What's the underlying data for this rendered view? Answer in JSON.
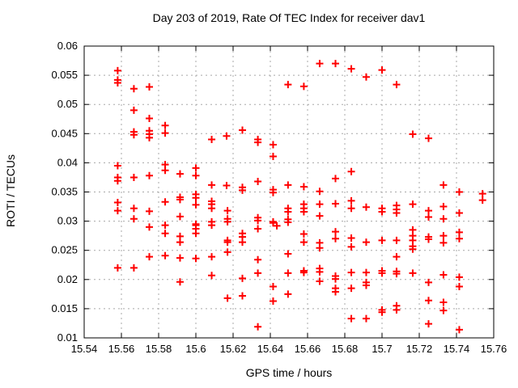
{
  "window": {
    "background": "#ffffff"
  },
  "chart_data": {
    "type": "scatter",
    "title": "Day 203 of 2019, Rate Of TEC Index for receiver dav1",
    "xlabel": "GPS time / hours",
    "ylabel": "ROTI / TECUs",
    "xlim": [
      15.54,
      15.76
    ],
    "ylim": [
      0.01,
      0.06
    ],
    "x_ticks": {
      "values": [
        15.54,
        15.56,
        15.58,
        15.6,
        15.62,
        15.64,
        15.66,
        15.68,
        15.7,
        15.72,
        15.74,
        15.76
      ],
      "labels": [
        "15.54",
        "15.56",
        "15.58",
        "15.6",
        "15.62",
        "15.64",
        "15.66",
        "15.68",
        "15.7",
        "15.72",
        "15.74",
        "15.76"
      ]
    },
    "y_ticks": {
      "values": [
        0.01,
        0.015,
        0.02,
        0.025,
        0.03,
        0.035,
        0.04,
        0.045,
        0.05,
        0.055,
        0.06
      ],
      "labels": [
        "0.01",
        "0.015",
        "0.02",
        "0.025",
        "0.03",
        "0.035",
        "0.04",
        "0.045",
        "0.05",
        "0.055",
        "0.06"
      ]
    },
    "grid": true,
    "grid_color": "#a8a8a8",
    "border_color": "#000000",
    "legend": "none",
    "marker": {
      "shape": "plus",
      "color": "#ff0000",
      "size": 9,
      "stroke_width": 2
    },
    "series": [
      {
        "name": "ROTI",
        "points": [
          [
            15.558,
            0.0558
          ],
          [
            15.558,
            0.0542
          ],
          [
            15.558,
            0.0537
          ],
          [
            15.5667,
            0.0527
          ],
          [
            15.575,
            0.053
          ],
          [
            15.5667,
            0.049
          ],
          [
            15.575,
            0.0476
          ],
          [
            15.5835,
            0.0464
          ],
          [
            15.5835,
            0.0451
          ],
          [
            15.5667,
            0.0453
          ],
          [
            15.5667,
            0.0448
          ],
          [
            15.575,
            0.0455
          ],
          [
            15.575,
            0.0449
          ],
          [
            15.575,
            0.0443
          ],
          [
            15.558,
            0.0395
          ],
          [
            15.5835,
            0.0397
          ],
          [
            15.5835,
            0.0387
          ],
          [
            15.5915,
            0.0381
          ],
          [
            15.558,
            0.0375
          ],
          [
            15.558,
            0.0369
          ],
          [
            15.5667,
            0.0375
          ],
          [
            15.575,
            0.0378
          ],
          [
            15.558,
            0.0332
          ],
          [
            15.558,
            0.0318
          ],
          [
            15.5667,
            0.0322
          ],
          [
            15.5667,
            0.0304
          ],
          [
            15.575,
            0.0317
          ],
          [
            15.575,
            0.029
          ],
          [
            15.5835,
            0.0333
          ],
          [
            15.5915,
            0.0341
          ],
          [
            15.5915,
            0.0337
          ],
          [
            15.5835,
            0.0293
          ],
          [
            15.5835,
            0.0279
          ],
          [
            15.5915,
            0.0308
          ],
          [
            15.5915,
            0.0274
          ],
          [
            15.5915,
            0.0264
          ],
          [
            15.575,
            0.0239
          ],
          [
            15.5835,
            0.0241
          ],
          [
            15.5915,
            0.0237
          ],
          [
            15.558,
            0.022
          ],
          [
            15.5667,
            0.022
          ],
          [
            15.5915,
            0.0196
          ],
          [
            15.6495,
            0.0534
          ],
          [
            15.625,
            0.0456
          ],
          [
            15.6165,
            0.0446
          ],
          [
            15.6085,
            0.044
          ],
          [
            15.6333,
            0.044
          ],
          [
            15.6333,
            0.0435
          ],
          [
            15.6415,
            0.0431
          ],
          [
            15.6415,
            0.0411
          ],
          [
            15.6,
            0.0391
          ],
          [
            15.6,
            0.0378
          ],
          [
            15.6085,
            0.0362
          ],
          [
            15.6165,
            0.0361
          ],
          [
            15.625,
            0.0358
          ],
          [
            15.625,
            0.0353
          ],
          [
            15.6333,
            0.0368
          ],
          [
            15.6415,
            0.0354
          ],
          [
            15.6415,
            0.0349
          ],
          [
            15.6495,
            0.0362
          ],
          [
            15.6,
            0.0346
          ],
          [
            15.6,
            0.034
          ],
          [
            15.6,
            0.0328
          ],
          [
            15.6085,
            0.0334
          ],
          [
            15.6085,
            0.0329
          ],
          [
            15.6085,
            0.0322
          ],
          [
            15.617,
            0.0318
          ],
          [
            15.617,
            0.0304
          ],
          [
            15.617,
            0.0299
          ],
          [
            15.6085,
            0.0299
          ],
          [
            15.6085,
            0.0293
          ],
          [
            15.6,
            0.0295
          ],
          [
            15.6,
            0.0293
          ],
          [
            15.6,
            0.0287
          ],
          [
            15.6,
            0.0279
          ],
          [
            15.6333,
            0.0306
          ],
          [
            15.6333,
            0.0301
          ],
          [
            15.6333,
            0.0287
          ],
          [
            15.6415,
            0.0299
          ],
          [
            15.6415,
            0.0297
          ],
          [
            15.6435,
            0.0292
          ],
          [
            15.6495,
            0.0322
          ],
          [
            15.6495,
            0.0316
          ],
          [
            15.6495,
            0.0303
          ],
          [
            15.6495,
            0.0298
          ],
          [
            15.625,
            0.0279
          ],
          [
            15.625,
            0.0273
          ],
          [
            15.625,
            0.0264
          ],
          [
            15.617,
            0.0267
          ],
          [
            15.617,
            0.0264
          ],
          [
            15.617,
            0.0247
          ],
          [
            15.6,
            0.0236
          ],
          [
            15.6085,
            0.0239
          ],
          [
            15.6333,
            0.0234
          ],
          [
            15.6085,
            0.0207
          ],
          [
            15.6333,
            0.0211
          ],
          [
            15.625,
            0.0202
          ],
          [
            15.6495,
            0.0244
          ],
          [
            15.6495,
            0.0211
          ],
          [
            15.6415,
            0.0188
          ],
          [
            15.6495,
            0.0175
          ],
          [
            15.6415,
            0.0163
          ],
          [
            15.617,
            0.0168
          ],
          [
            15.625,
            0.0172
          ],
          [
            15.6333,
            0.0119
          ],
          [
            15.6665,
            0.057
          ],
          [
            15.675,
            0.057
          ],
          [
            15.6835,
            0.0561
          ],
          [
            15.7,
            0.0559
          ],
          [
            15.6915,
            0.0547
          ],
          [
            15.658,
            0.0531
          ],
          [
            15.6835,
            0.0385
          ],
          [
            15.675,
            0.0373
          ],
          [
            15.658,
            0.0359
          ],
          [
            15.6665,
            0.0351
          ],
          [
            15.658,
            0.0329
          ],
          [
            15.658,
            0.0322
          ],
          [
            15.658,
            0.0316
          ],
          [
            15.6665,
            0.0329
          ],
          [
            15.6665,
            0.0309
          ],
          [
            15.675,
            0.033
          ],
          [
            15.6835,
            0.0335
          ],
          [
            15.6835,
            0.0322
          ],
          [
            15.6915,
            0.0324
          ],
          [
            15.7,
            0.0322
          ],
          [
            15.7,
            0.0316
          ],
          [
            15.658,
            0.0278
          ],
          [
            15.658,
            0.0264
          ],
          [
            15.6665,
            0.0263
          ],
          [
            15.6665,
            0.0254
          ],
          [
            15.675,
            0.0282
          ],
          [
            15.675,
            0.027
          ],
          [
            15.6835,
            0.0271
          ],
          [
            15.6835,
            0.0256
          ],
          [
            15.6915,
            0.0264
          ],
          [
            15.7,
            0.0267
          ],
          [
            15.658,
            0.0215
          ],
          [
            15.658,
            0.0212
          ],
          [
            15.6665,
            0.0219
          ],
          [
            15.6665,
            0.0213
          ],
          [
            15.6665,
            0.0197
          ],
          [
            15.675,
            0.0206
          ],
          [
            15.675,
            0.0201
          ],
          [
            15.675,
            0.0185
          ],
          [
            15.675,
            0.0179
          ],
          [
            15.6835,
            0.0212
          ],
          [
            15.6835,
            0.0185
          ],
          [
            15.6915,
            0.0212
          ],
          [
            15.6915,
            0.0195
          ],
          [
            15.6915,
            0.019
          ],
          [
            15.7,
            0.0215
          ],
          [
            15.7,
            0.0211
          ],
          [
            15.7,
            0.0148
          ],
          [
            15.7,
            0.0144
          ],
          [
            15.6835,
            0.0133
          ],
          [
            15.6915,
            0.0133
          ],
          [
            15.7078,
            0.0534
          ],
          [
            15.7165,
            0.0449
          ],
          [
            15.725,
            0.0442
          ],
          [
            15.733,
            0.0362
          ],
          [
            15.7415,
            0.035
          ],
          [
            15.7078,
            0.0327
          ],
          [
            15.7078,
            0.032
          ],
          [
            15.7078,
            0.0314
          ],
          [
            15.7165,
            0.0329
          ],
          [
            15.725,
            0.0318
          ],
          [
            15.725,
            0.0307
          ],
          [
            15.733,
            0.0325
          ],
          [
            15.733,
            0.0304
          ],
          [
            15.7415,
            0.0314
          ],
          [
            15.7165,
            0.0285
          ],
          [
            15.7165,
            0.0275
          ],
          [
            15.7165,
            0.0267
          ],
          [
            15.7078,
            0.0267
          ],
          [
            15.725,
            0.0273
          ],
          [
            15.725,
            0.0269
          ],
          [
            15.733,
            0.0275
          ],
          [
            15.733,
            0.0263
          ],
          [
            15.7415,
            0.0281
          ],
          [
            15.7415,
            0.027
          ],
          [
            15.7165,
            0.0257
          ],
          [
            15.7165,
            0.0252
          ],
          [
            15.7078,
            0.0239
          ],
          [
            15.7078,
            0.0214
          ],
          [
            15.7078,
            0.021
          ],
          [
            15.7165,
            0.0211
          ],
          [
            15.733,
            0.0208
          ],
          [
            15.7415,
            0.0204
          ],
          [
            15.725,
            0.0195
          ],
          [
            15.7415,
            0.0188
          ],
          [
            15.725,
            0.0164
          ],
          [
            15.733,
            0.0161
          ],
          [
            15.733,
            0.0147
          ],
          [
            15.7078,
            0.0155
          ],
          [
            15.7078,
            0.0148
          ],
          [
            15.725,
            0.0124
          ],
          [
            15.7415,
            0.0114
          ],
          [
            15.754,
            0.0347
          ],
          [
            15.754,
            0.0336
          ]
        ]
      }
    ]
  }
}
